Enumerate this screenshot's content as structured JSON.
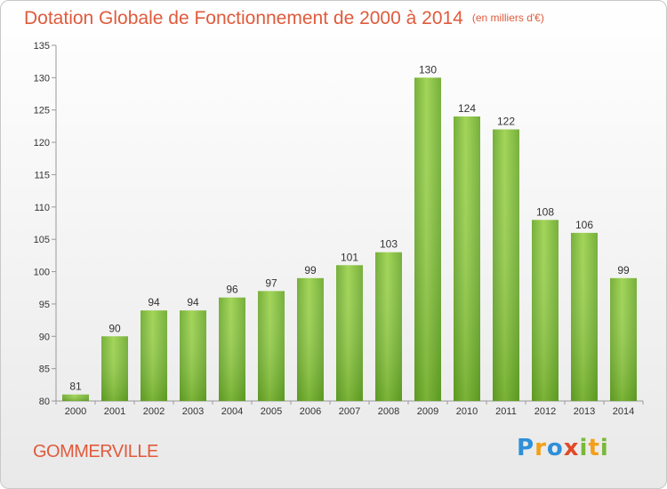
{
  "title": "Dotation Globale de Fonctionnement de 2000 à 2014",
  "subtitle": "(en milliers d'€)",
  "city": "GOMMERVILLE",
  "logo": {
    "text": "Proxiti",
    "letters": [
      {
        "ch": "P",
        "color": "#2f8fd8"
      },
      {
        "ch": "r",
        "color": "#f2a01a"
      },
      {
        "ch": "o",
        "color": "#2f8fd8"
      },
      {
        "ch": "x",
        "color": "#e04a2a"
      },
      {
        "ch": "i",
        "color": "#7ab83a"
      },
      {
        "ch": "t",
        "color": "#f2a01a"
      },
      {
        "ch": "i",
        "color": "#7ab83a"
      }
    ]
  },
  "chart_data": {
    "type": "bar",
    "title": "Dotation Globale de Fonctionnement de 2000 à 2014",
    "subtitle": "(en milliers d'€)",
    "categories": [
      "2000",
      "2001",
      "2002",
      "2003",
      "2004",
      "2005",
      "2006",
      "2007",
      "2008",
      "2009",
      "2010",
      "2011",
      "2012",
      "2013",
      "2014"
    ],
    "values": [
      81,
      90,
      94,
      94,
      96,
      97,
      99,
      101,
      103,
      130,
      124,
      122,
      108,
      106,
      99
    ],
    "ylim": [
      80,
      135
    ],
    "yticks": [
      80,
      85,
      90,
      95,
      100,
      105,
      110,
      115,
      120,
      125,
      130,
      135
    ],
    "grid": false,
    "bar_color": "#7cbf2e"
  }
}
